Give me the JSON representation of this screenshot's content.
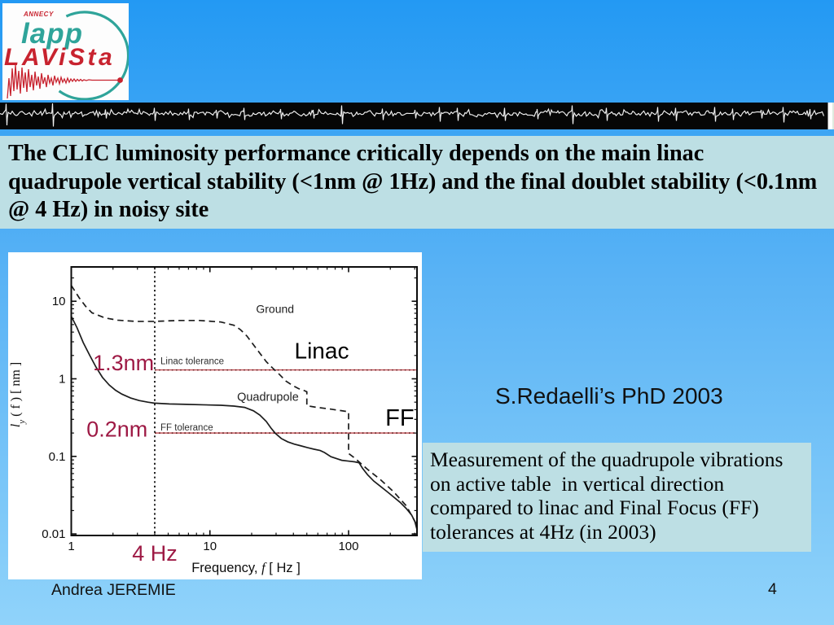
{
  "logo": {
    "annecy": "ANNECY",
    "lapp": "lapp",
    "lavista": "LAViSta",
    "teal": "#2fa49a",
    "red": "#c8232f"
  },
  "title": {
    "lines": [
      "The CLIC luminosity performance critically depends on the main linac",
      "quadrupole vertical stability (<1nm @ 1Hz) and the final doublet stability (<0.1nm",
      "@ 4 Hz) in noisy site"
    ]
  },
  "citation": "S.Redaelli’s PhD 2003",
  "note": {
    "lines": [
      "Measurement of the quadrupole vibrations",
      "on active table  in vertical direction",
      "compared to linac and Final Focus (FF)",
      "tolerances at 4Hz (in 2003)"
    ]
  },
  "footer": {
    "author": "Andrea JEREMIE",
    "page": "4"
  },
  "chart_data": {
    "type": "line",
    "x_axis": {
      "scale": "log",
      "min": 1,
      "max": 311.5,
      "majors": [
        1,
        10,
        100
      ],
      "labels": [
        "1",
        "10",
        "100"
      ],
      "minors": [
        2,
        3,
        4,
        5,
        6,
        7,
        8,
        9,
        20,
        30,
        40,
        50,
        60,
        70,
        80,
        90,
        200,
        300
      ]
    },
    "y_axis": {
      "scale": "log",
      "min": 0.00955,
      "max": 27.7,
      "majors": [
        10,
        1,
        0.1,
        0.01
      ],
      "labels": [
        "10",
        "1",
        "0.1",
        "0.01"
      ],
      "minors": [
        20,
        9,
        8,
        7,
        6,
        5,
        4,
        3,
        2,
        0.9,
        0.8,
        0.7,
        0.6,
        0.5,
        0.4,
        0.3,
        0.2,
        0.09,
        0.08,
        0.07,
        0.06,
        0.05,
        0.04,
        0.03,
        0.02
      ]
    },
    "xlabel": {
      "pre": "Frequency,",
      "italic": "f",
      "post": "  [ Hz ]"
    },
    "ylabel": {
      "italic": "l",
      "sub": "y",
      "post": " ( f ) [ nm ]"
    },
    "series": [
      {
        "name": "Ground",
        "style": "dashed",
        "color": "#1c1c1c",
        "points": [
          [
            1,
            16
          ],
          [
            1.14,
            11.1
          ],
          [
            1.27,
            8.6
          ],
          [
            1.41,
            7.1
          ],
          [
            1.75,
            6.1
          ],
          [
            2.16,
            5.7
          ],
          [
            2.9,
            5.5
          ],
          [
            4.0,
            5.5
          ],
          [
            5.9,
            5.65
          ],
          [
            8.4,
            5.65
          ],
          [
            12,
            5.4
          ],
          [
            14.9,
            4.9
          ],
          [
            16.6,
            4.3
          ],
          [
            18.5,
            3.55
          ],
          [
            20.6,
            2.75
          ],
          [
            22.9,
            2.14
          ],
          [
            25.5,
            1.66
          ],
          [
            28.4,
            1.37
          ],
          [
            31.7,
            1.14
          ],
          [
            35.2,
            0.94
          ],
          [
            39.1,
            0.83
          ],
          [
            43.4,
            0.75
          ],
          [
            48.4,
            0.7
          ],
          [
            50,
            0.68
          ],
          [
            50,
            0.45
          ],
          [
            58,
            0.43
          ],
          [
            72,
            0.41
          ],
          [
            96,
            0.38
          ],
          [
            100,
            0.375
          ],
          [
            100,
            0.109
          ],
          [
            110,
            0.096
          ],
          [
            137,
            0.068
          ],
          [
            170,
            0.05
          ],
          [
            211,
            0.035
          ],
          [
            261,
            0.023
          ],
          [
            311,
            0.013
          ]
        ]
      },
      {
        "name": "Quadrupole",
        "style": "solid",
        "color": "#1c1c1c",
        "points": [
          [
            1,
            6.4
          ],
          [
            1.1,
            4.56
          ],
          [
            1.22,
            2.93
          ],
          [
            1.36,
            2.0
          ],
          [
            1.51,
            1.41
          ],
          [
            1.68,
            1.04
          ],
          [
            1.88,
            0.83
          ],
          [
            2.09,
            0.71
          ],
          [
            2.32,
            0.634
          ],
          [
            2.68,
            0.566
          ],
          [
            3.09,
            0.524
          ],
          [
            3.57,
            0.5
          ],
          [
            3.97,
            0.486
          ],
          [
            5.1,
            0.474
          ],
          [
            6.8,
            0.468
          ],
          [
            9.0,
            0.462
          ],
          [
            12.05,
            0.456
          ],
          [
            14.9,
            0.445
          ],
          [
            17.8,
            0.428
          ],
          [
            20.6,
            0.387
          ],
          [
            22.9,
            0.341
          ],
          [
            25.5,
            0.282
          ],
          [
            27.5,
            0.233
          ],
          [
            29.5,
            0.2
          ],
          [
            32.7,
            0.17
          ],
          [
            36.4,
            0.154
          ],
          [
            40.5,
            0.144
          ],
          [
            45.1,
            0.137
          ],
          [
            50.3,
            0.13
          ],
          [
            56,
            0.124
          ],
          [
            62.4,
            0.119
          ],
          [
            67.1,
            0.112
          ],
          [
            74.6,
            0.099
          ],
          [
            82.9,
            0.093
          ],
          [
            89.3,
            0.089
          ],
          [
            99.4,
            0.087
          ],
          [
            110.7,
            0.085
          ],
          [
            119,
            0.0827
          ],
          [
            126,
            0.0703
          ],
          [
            137,
            0.058
          ],
          [
            152,
            0.048
          ],
          [
            170,
            0.041
          ],
          [
            190,
            0.035
          ],
          [
            211,
            0.03
          ],
          [
            235,
            0.0256
          ],
          [
            261,
            0.0212
          ],
          [
            285,
            0.0175
          ],
          [
            300,
            0.0146
          ],
          [
            311,
            0.0115
          ]
        ]
      }
    ],
    "tolerance_lines": [
      {
        "label": "Linac tolerance",
        "value": 1.3,
        "start_f": 4,
        "color": "#b11f27"
      },
      {
        "label": "FF tolerance",
        "value": 0.2,
        "start_f": 4,
        "color": "#b11f27"
      }
    ],
    "marker_line": {
      "f": 4,
      "color": "#101010"
    },
    "annotations": [
      {
        "text": "Ground",
        "f": 29.5,
        "v": 8.0,
        "size": 14,
        "color": "#1f1f1f",
        "anchor": "middle"
      },
      {
        "text": "Linac",
        "f": 64,
        "v": 2.33,
        "size": 28,
        "color": "#000000",
        "anchor": "middle"
      },
      {
        "text": "Quadrupole",
        "f": 26.2,
        "v": 0.59,
        "size": 14.5,
        "color": "#1f1f1f",
        "anchor": "middle"
      },
      {
        "text": "Linac tolerance",
        "f": 4.4,
        "v": 1.7,
        "size": 11.5,
        "color": "#2e2e2e",
        "anchor": "start"
      },
      {
        "text": "FF tolerance",
        "f": 4.4,
        "v": 0.238,
        "size": 11.5,
        "color": "#2e2e2e",
        "anchor": "start"
      },
      {
        "text": "1.3nm",
        "f": 2.38,
        "v": 1.62,
        "size": 27,
        "color": "#9e1a45",
        "anchor": "middle"
      },
      {
        "text": "0.2nm",
        "f": 2.14,
        "v": 0.225,
        "size": 27,
        "color": "#9e1a45",
        "anchor": "middle"
      },
      {
        "text": "FF",
        "f": 234,
        "v": 0.32,
        "size": 29,
        "color": "#000000",
        "anchor": "middle"
      },
      {
        "text": "4 Hz",
        "f": 4.0,
        "v": 0.0057,
        "size": 27,
        "color": "#9e1a45",
        "anchor": "middle"
      }
    ]
  }
}
